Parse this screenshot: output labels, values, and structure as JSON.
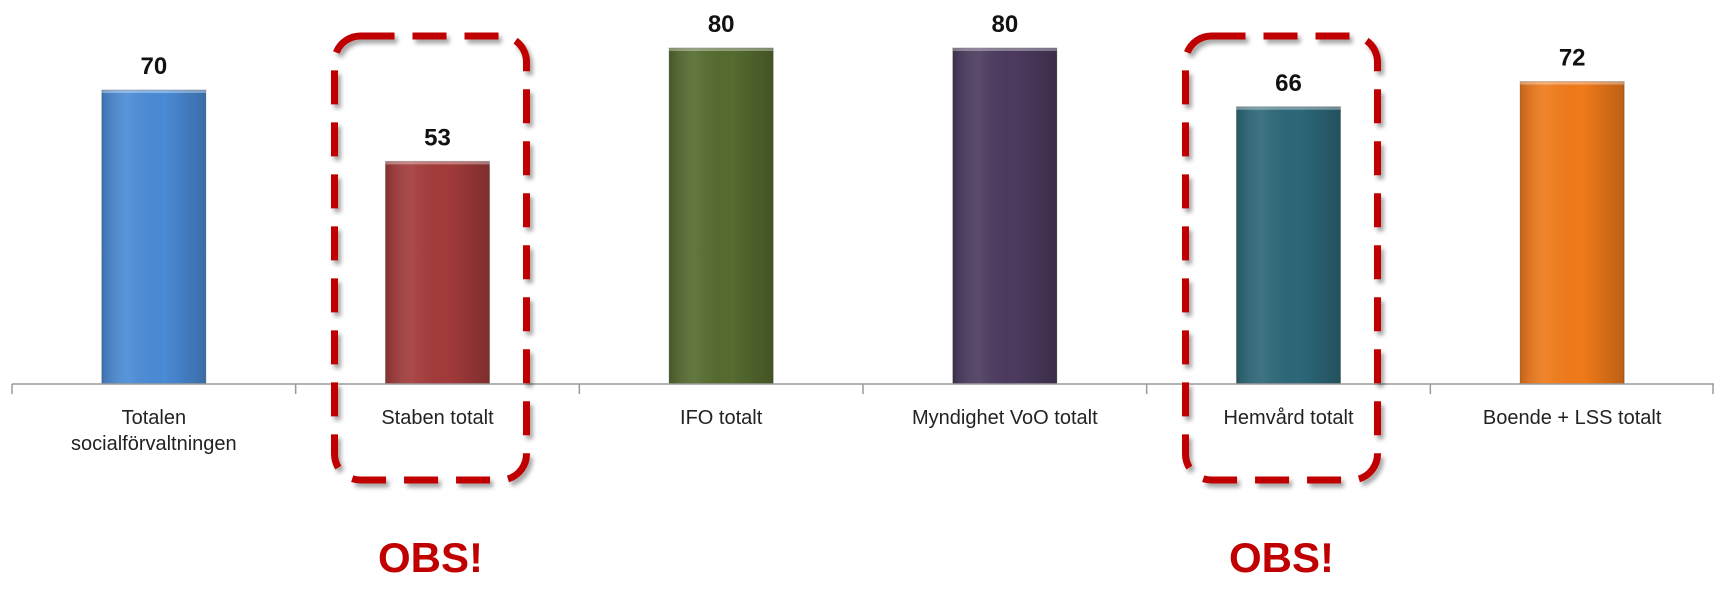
{
  "chart_data": {
    "type": "bar",
    "categories": [
      "Totalen socialförvaltningen",
      "Staben totalt",
      "IFO totalt",
      "Myndighet VoO totalt",
      "Hemvård totalt",
      "Boende + LSS totalt"
    ],
    "category_lines": [
      [
        "Totalen",
        "socialförvaltningen"
      ],
      [
        "Staben totalt"
      ],
      [
        "IFO totalt"
      ],
      [
        "Myndighet VoO totalt"
      ],
      [
        "Hemvård totalt"
      ],
      [
        "Boende + LSS totalt"
      ]
    ],
    "values": [
      70,
      53,
      80,
      80,
      66,
      72
    ],
    "colors": [
      "#4a8bd6",
      "#a33a3a",
      "#556b2f",
      "#4b3a5e",
      "#2c6878",
      "#f07a1a"
    ],
    "title": "",
    "xlabel": "",
    "ylabel": "",
    "ylim": [
      0,
      80
    ],
    "grid": false,
    "legend": "none",
    "data_labels": true
  },
  "annotations": {
    "highlighted_categories": [
      1,
      4
    ],
    "highlight_color": "#c00000",
    "highlight_text": "OBS!"
  }
}
